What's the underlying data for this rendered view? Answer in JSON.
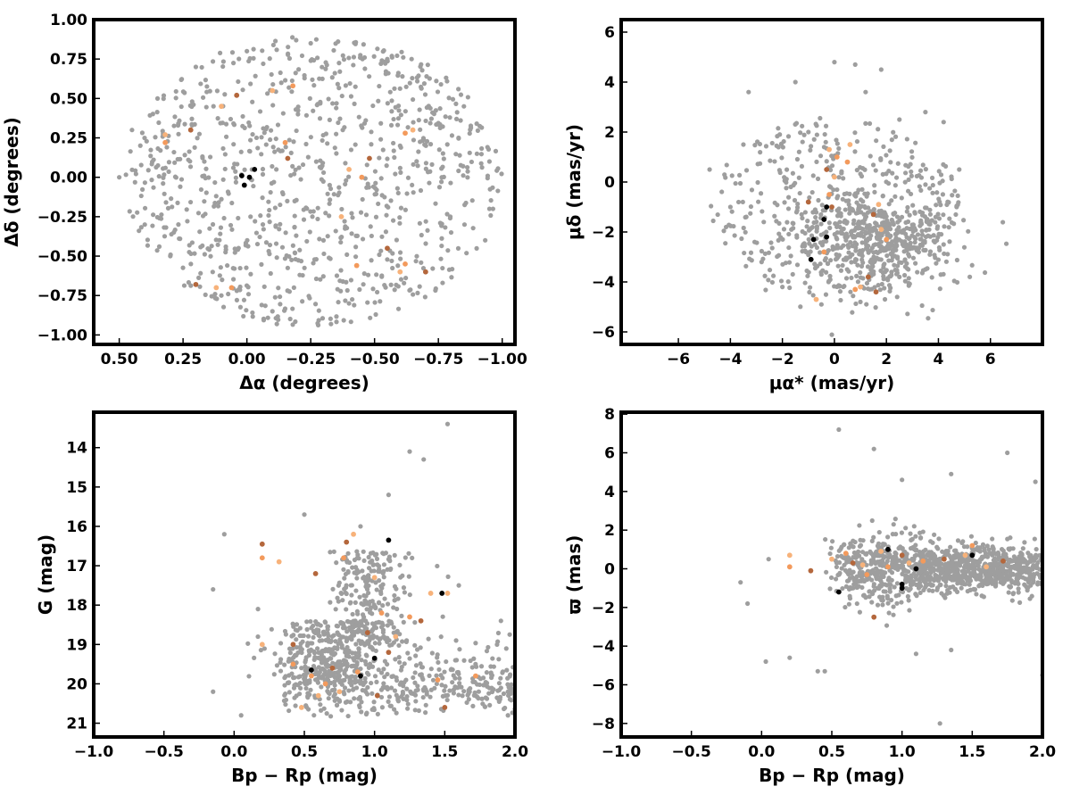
{
  "colors": {
    "field": "#9e9e9e",
    "member_light": "#f7b27a",
    "member_mid": "#f39a5c",
    "member_dark": "#b4673c",
    "core": "#000000"
  },
  "chart_data": [
    {
      "id": "sky",
      "type": "scatter",
      "title": "",
      "xlabel": "Δα (degrees)",
      "ylabel": "Δδ (degrees)",
      "xlim": [
        0.6,
        -1.05
      ],
      "ylim": [
        -1.06,
        1.0
      ],
      "x_inverted": true,
      "xticks": [
        "0.50",
        "0.25",
        "0.00",
        "−0.25",
        "−0.50",
        "−0.75",
        "−1.00"
      ],
      "xtick_values": [
        0.5,
        0.25,
        0.0,
        -0.25,
        -0.5,
        -0.75,
        -1.0
      ],
      "yticks": [
        "1.00",
        "0.75",
        "0.50",
        "0.25",
        "0.00",
        "−0.25",
        "−0.50",
        "−0.75",
        "−1.00"
      ],
      "ytick_values": [
        1.0,
        0.75,
        0.5,
        0.25,
        0.0,
        -0.25,
        -0.5,
        -0.75,
        -1.0
      ],
      "series": [
        {
          "role": "field",
          "points": [
            [
              0.5,
              0.0
            ],
            [
              0.45,
              0.3
            ],
            [
              0.4,
              -0.3
            ],
            [
              0.35,
              0.5
            ],
            [
              0.3,
              -0.5
            ],
            [
              0.2,
              0.7
            ],
            [
              0.1,
              -0.75
            ],
            [
              0.0,
              0.8
            ],
            [
              -0.1,
              -0.85
            ],
            [
              -0.25,
              0.85
            ],
            [
              -0.4,
              -0.8
            ],
            [
              -0.55,
              0.75
            ],
            [
              -0.7,
              -0.6
            ],
            [
              -0.85,
              0.45
            ],
            [
              -0.95,
              0.1
            ],
            [
              -0.95,
              -0.2
            ],
            [
              -0.8,
              -0.35
            ],
            [
              -0.6,
              0.2
            ],
            [
              -0.3,
              -0.4
            ],
            [
              -0.2,
              0.4
            ]
          ]
        },
        {
          "role": "members",
          "points": [
            [
              -0.1,
              0.55
            ],
            [
              -0.18,
              0.58
            ],
            [
              0.22,
              0.3
            ],
            [
              0.32,
              0.27
            ],
            [
              -0.15,
              0.22
            ],
            [
              -0.16,
              0.12
            ],
            [
              -0.4,
              0.05
            ],
            [
              -0.45,
              0.0
            ],
            [
              -0.48,
              0.12
            ],
            [
              -0.65,
              0.3
            ],
            [
              -0.62,
              0.28
            ],
            [
              -0.55,
              -0.45
            ],
            [
              -0.6,
              -0.6
            ],
            [
              -0.62,
              -0.55
            ],
            [
              0.2,
              -0.68
            ],
            [
              0.12,
              -0.7
            ],
            [
              0.06,
              -0.7
            ],
            [
              0.04,
              0.52
            ],
            [
              0.1,
              0.45
            ],
            [
              -0.43,
              -0.56
            ],
            [
              -0.7,
              -0.6
            ],
            [
              -0.37,
              -0.25
            ],
            [
              0.32,
              0.22
            ]
          ]
        },
        {
          "role": "core",
          "points": [
            [
              0.02,
              0.01
            ],
            [
              -0.01,
              0.0
            ],
            [
              -0.03,
              0.05
            ],
            [
              0.01,
              -0.05
            ]
          ]
        }
      ]
    },
    {
      "id": "pm",
      "type": "scatter",
      "title": "",
      "xlabel": "μα* (mas/yr)",
      "ylabel": "μδ (mas/yr)",
      "xlim": [
        -8.2,
        8.0
      ],
      "ylim": [
        -6.5,
        6.5
      ],
      "xticks": [
        "−6",
        "−4",
        "−2",
        "0",
        "2",
        "4",
        "6"
      ],
      "xtick_values": [
        -6,
        -4,
        -2,
        0,
        2,
        4,
        6
      ],
      "yticks": [
        "6",
        "4",
        "2",
        "0",
        "−2",
        "−4",
        "−6"
      ],
      "ytick_values": [
        6,
        4,
        2,
        0,
        -2,
        -4,
        -6
      ],
      "series": [
        {
          "role": "field",
          "points": [
            [
              -4.8,
              0.5
            ],
            [
              -4.0,
              -1.0
            ],
            [
              -3.5,
              1.5
            ],
            [
              -3.3,
              3.6
            ],
            [
              -2.8,
              -3.2
            ],
            [
              -2.0,
              -4.2
            ],
            [
              -1.5,
              4.0
            ],
            [
              -1.0,
              2.0
            ],
            [
              0.0,
              4.8
            ],
            [
              0.8,
              4.7
            ],
            [
              1.8,
              4.5
            ],
            [
              1.2,
              3.6
            ],
            [
              2.5,
              2.5
            ],
            [
              3.5,
              2.8
            ],
            [
              4.2,
              2.4
            ],
            [
              4.8,
              0.5
            ],
            [
              4.7,
              -1.0
            ],
            [
              4.2,
              -2.5
            ],
            [
              3.5,
              -3.5
            ],
            [
              2.5,
              -3.8
            ],
            [
              1.0,
              -4.8
            ],
            [
              -0.5,
              -4.9
            ],
            [
              2.0,
              -2.0
            ],
            [
              1.0,
              -1.0
            ],
            [
              -1.2,
              -2.5
            ]
          ]
        },
        {
          "role": "members",
          "points": [
            [
              -0.2,
              1.3
            ],
            [
              0.1,
              1.0
            ],
            [
              -0.3,
              0.5
            ],
            [
              0.0,
              0.2
            ],
            [
              -0.2,
              -0.5
            ],
            [
              -0.1,
              -1.0
            ],
            [
              0.6,
              1.5
            ],
            [
              0.5,
              0.8
            ],
            [
              1.5,
              -1.3
            ],
            [
              1.8,
              -1.9
            ],
            [
              2.0,
              -2.3
            ],
            [
              1.3,
              -3.8
            ],
            [
              1.0,
              -4.2
            ],
            [
              0.8,
              -4.3
            ],
            [
              1.6,
              -4.4
            ],
            [
              -0.7,
              -4.7
            ],
            [
              -0.4,
              -2.8
            ],
            [
              -1.0,
              -0.8
            ],
            [
              1.7,
              -0.9
            ]
          ]
        },
        {
          "role": "core",
          "points": [
            [
              -0.3,
              -1.0
            ],
            [
              -0.4,
              -1.5
            ],
            [
              -0.3,
              -2.2
            ],
            [
              -0.8,
              -2.3
            ],
            [
              -0.9,
              -3.1
            ]
          ]
        }
      ]
    },
    {
      "id": "cmd",
      "type": "scatter",
      "title": "",
      "xlabel": "Bp − Rp (mag)",
      "ylabel": "G (mag)",
      "xlim": [
        -1.0,
        2.0
      ],
      "ylim": [
        21.35,
        13.1
      ],
      "y_inverted": true,
      "xticks": [
        "−1.0",
        "−0.5",
        "0.0",
        "0.5",
        "1.0",
        "1.5",
        "2.0"
      ],
      "xtick_values": [
        -1.0,
        -0.5,
        0.0,
        0.5,
        1.0,
        1.5,
        2.0
      ],
      "yticks": [
        "21",
        "20",
        "19",
        "18",
        "17",
        "16",
        "15",
        "14"
      ],
      "ytick_values": [
        21,
        20,
        19,
        18,
        17,
        16,
        15,
        14
      ],
      "series": [
        {
          "role": "field",
          "points": [
            [
              -0.15,
              20.2
            ],
            [
              -0.15,
              17.6
            ],
            [
              -0.07,
              16.2
            ],
            [
              0.05,
              20.8
            ],
            [
              0.17,
              18.1
            ],
            [
              0.5,
              15.7
            ],
            [
              1.25,
              14.1
            ],
            [
              1.35,
              14.3
            ],
            [
              1.52,
              13.4
            ],
            [
              1.1,
              15.2
            ],
            [
              0.9,
              16.0
            ],
            [
              1.95,
              20.8
            ],
            [
              1.9,
              18.4
            ],
            [
              1.6,
              17.5
            ]
          ]
        },
        {
          "role": "members",
          "points": [
            [
              0.2,
              19.0
            ],
            [
              0.2,
              16.8
            ],
            [
              0.2,
              16.45
            ],
            [
              0.32,
              16.9
            ],
            [
              0.42,
              19.5
            ],
            [
              0.42,
              19.0
            ],
            [
              0.48,
              20.6
            ],
            [
              0.55,
              19.8
            ],
            [
              0.58,
              17.2
            ],
            [
              0.6,
              20.3
            ],
            [
              0.65,
              20.0
            ],
            [
              0.7,
              19.6
            ],
            [
              0.75,
              20.2
            ],
            [
              0.78,
              16.8
            ],
            [
              0.8,
              16.4
            ],
            [
              0.85,
              16.2
            ],
            [
              0.88,
              19.7
            ],
            [
              0.95,
              18.7
            ],
            [
              1.0,
              17.3
            ],
            [
              1.05,
              18.2
            ],
            [
              1.1,
              19.2
            ],
            [
              1.15,
              18.8
            ],
            [
              1.25,
              18.3
            ],
            [
              1.33,
              18.4
            ],
            [
              1.4,
              17.7
            ],
            [
              1.45,
              19.9
            ],
            [
              1.5,
              20.6
            ],
            [
              1.52,
              17.7
            ],
            [
              1.72,
              19.8
            ],
            [
              1.02,
              20.3
            ]
          ]
        },
        {
          "role": "core",
          "points": [
            [
              0.55,
              19.65
            ],
            [
              0.9,
              19.8
            ],
            [
              1.0,
              19.35
            ],
            [
              1.1,
              16.35
            ],
            [
              1.48,
              17.7
            ]
          ]
        }
      ]
    },
    {
      "id": "plx",
      "type": "scatter",
      "title": "",
      "xlabel": "Bp − Rp (mag)",
      "ylabel": "ϖ (mas)",
      "xlim": [
        -1.0,
        2.0
      ],
      "ylim": [
        -8.7,
        8.1
      ],
      "xticks": [
        "−1.0",
        "−0.5",
        "0.0",
        "0.5",
        "1.0",
        "1.5",
        "2.0"
      ],
      "xtick_values": [
        -1.0,
        -0.5,
        0.0,
        0.5,
        1.0,
        1.5,
        2.0
      ],
      "yticks": [
        "8",
        "6",
        "4",
        "2",
        "0",
        "−2",
        "−4",
        "−6",
        "−8"
      ],
      "ytick_values": [
        8,
        6,
        4,
        2,
        0,
        -2,
        -4,
        -6,
        -8
      ],
      "series": [
        {
          "role": "field",
          "points": [
            [
              0.55,
              7.2
            ],
            [
              0.8,
              6.2
            ],
            [
              1.75,
              6.0
            ],
            [
              1.95,
              4.5
            ],
            [
              1.35,
              4.9
            ],
            [
              1.0,
              4.6
            ],
            [
              0.03,
              -4.8
            ],
            [
              0.2,
              -4.6
            ],
            [
              0.4,
              -5.3
            ],
            [
              0.45,
              -5.3
            ],
            [
              1.27,
              -8.0
            ],
            [
              2.0,
              -5.5
            ],
            [
              1.1,
              -4.4
            ],
            [
              1.35,
              -4.2
            ],
            [
              -0.15,
              -0.7
            ],
            [
              -0.1,
              -1.8
            ],
            [
              0.05,
              0.5
            ]
          ]
        },
        {
          "role": "members",
          "points": [
            [
              0.2,
              0.7
            ],
            [
              0.2,
              0.1
            ],
            [
              0.35,
              -0.1
            ],
            [
              0.5,
              0.5
            ],
            [
              0.6,
              0.8
            ],
            [
              0.65,
              0.3
            ],
            [
              0.72,
              0.2
            ],
            [
              0.75,
              -0.3
            ],
            [
              0.8,
              -2.5
            ],
            [
              0.85,
              0.9
            ],
            [
              0.9,
              0.1
            ],
            [
              1.0,
              0.7
            ],
            [
              1.05,
              0.3
            ],
            [
              1.15,
              0.4
            ],
            [
              1.3,
              0.5
            ],
            [
              1.45,
              0.7
            ],
            [
              1.5,
              1.2
            ],
            [
              1.72,
              0.4
            ],
            [
              1.6,
              0.1
            ]
          ]
        },
        {
          "role": "core",
          "points": [
            [
              0.55,
              -1.2
            ],
            [
              0.9,
              1.0
            ],
            [
              1.0,
              -0.8
            ],
            [
              1.0,
              -1.0
            ],
            [
              1.1,
              0.0
            ],
            [
              1.5,
              0.7
            ]
          ]
        }
      ]
    }
  ]
}
